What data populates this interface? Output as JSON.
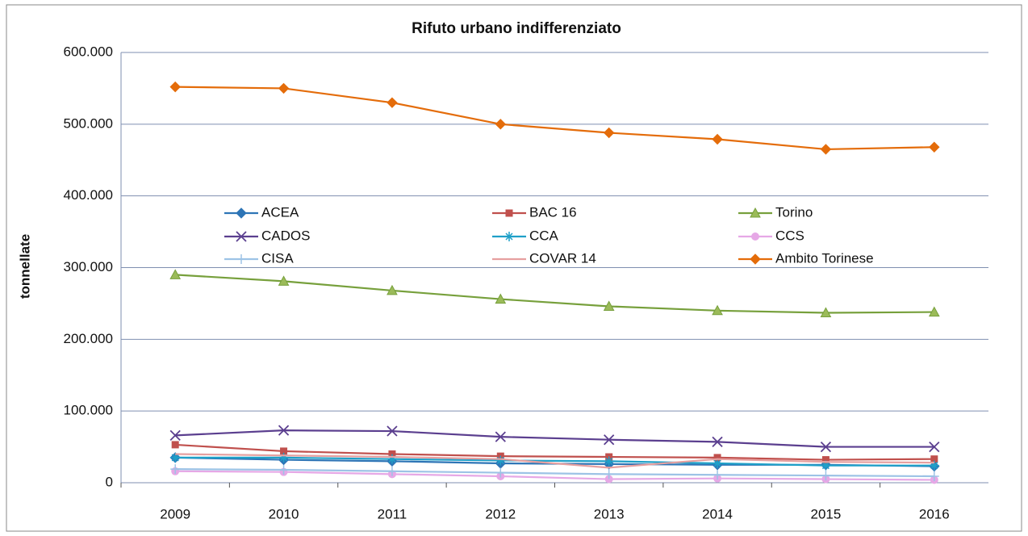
{
  "chart_data": {
    "type": "line",
    "title": "Rifuto urbano indifferenziato",
    "y_label": "tonnellate",
    "categories": [
      "2009",
      "2010",
      "2011",
      "2012",
      "2013",
      "2014",
      "2015",
      "2016"
    ],
    "ylim": [
      0,
      600000
    ],
    "yticks": [
      0,
      {
        "value": 100000,
        "label": "100.000"
      },
      {
        "value": 200000,
        "label": "200.000"
      },
      {
        "value": 300000,
        "label": "300.000"
      },
      {
        "value": 400000,
        "label": "400.000"
      },
      {
        "value": 500000,
        "label": "500.000"
      },
      {
        "value": 600000,
        "label": "600.000"
      }
    ],
    "grid": true,
    "series": [
      {
        "name": "ACEA",
        "color": "#2e75b6",
        "marker": "diamond",
        "values": [
          35000,
          32000,
          30000,
          27000,
          26000,
          25000,
          25000,
          23000
        ]
      },
      {
        "name": "BAC 16",
        "color": "#c0504d",
        "marker": "square",
        "values": [
          53000,
          44000,
          40000,
          37000,
          36000,
          35000,
          32000,
          33000
        ]
      },
      {
        "name": "Torino",
        "color": "#77a03c",
        "marker": "triangle",
        "values": [
          290000,
          281000,
          268000,
          256000,
          246000,
          240000,
          237000,
          238000
        ]
      },
      {
        "name": "CADOS",
        "color": "#5b3f8f",
        "marker": "x",
        "values": [
          66000,
          73000,
          72000,
          64000,
          60000,
          57000,
          50000,
          50000
        ]
      },
      {
        "name": "CCA",
        "color": "#1fa0c8",
        "marker": "star",
        "values": [
          35000,
          35000,
          33000,
          31000,
          30000,
          27000,
          24000,
          24000
        ]
      },
      {
        "name": "CCS",
        "color": "#e6a8e6",
        "marker": "circle",
        "values": [
          16000,
          15000,
          12000,
          9000,
          5000,
          6000,
          5000,
          4000
        ]
      },
      {
        "name": "CISA",
        "color": "#9dc3e6",
        "marker": "plus",
        "values": [
          19000,
          18000,
          16000,
          14000,
          12000,
          11000,
          10000,
          9000
        ]
      },
      {
        "name": "COVAR 14",
        "color": "#e6a0a0",
        "marker": "none",
        "values": [
          40000,
          38000,
          36000,
          33000,
          21000,
          33000,
          29000,
          28000
        ]
      },
      {
        "name": "Ambito Torinese",
        "color": "#e46c0a",
        "marker": "diamond",
        "values": [
          552000,
          550000,
          530000,
          500000,
          488000,
          479000,
          465000,
          468000
        ]
      }
    ]
  }
}
